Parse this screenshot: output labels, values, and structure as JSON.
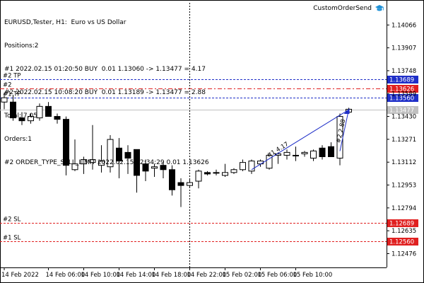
{
  "window": {
    "title": "EURUSD,Tester, H1:  Euro vs US Dollar"
  },
  "info": {
    "positions": "Positions:2",
    "pos1": "#1 2022.02.15 01:20:50 BUY  0.01 1.13060 -> 1.13477 = 4.17",
    "pos2": "#2 2022.02.15 10:08:20 BUY  0.01 1.13189 -> 1.13477 = 2.88",
    "total": "Total: 7.05",
    "orders": "Orders:1",
    "order1": "#2 ORDER_TYPE_SELL_LIMIT 2022.02.15 02:34:29 0.01 1.13626"
  },
  "expert": {
    "name": "CustomOrderSend",
    "icon": "graduation-cap-icon",
    "icon_color": "#1e90d6"
  },
  "levels": [
    {
      "label": "#2 TP",
      "price": 1.13689,
      "price_label": "1.13689",
      "color": "#1f2fc8",
      "badge": "#1f2fc8"
    },
    {
      "label": "#2",
      "price": 1.13626,
      "price_label": "1.13626",
      "color": "#e02020",
      "badge": "#e02020"
    },
    {
      "label": "#1 TP",
      "price": 1.1356,
      "price_label": "1.13560",
      "color": "#1f2fc8",
      "badge": "#1f2fc8"
    },
    {
      "label": "",
      "price": 1.13477,
      "price_label": "1.13477",
      "color": "#c0c0c0",
      "badge": "#c0c0c0"
    },
    {
      "label": "#2 SL",
      "price": 1.12689,
      "price_label": "1.12689",
      "color": "#e02020",
      "badge": "#e02020"
    },
    {
      "label": "#1 SL",
      "price": 1.1256,
      "price_label": "1.12560",
      "color": "#e02020",
      "badge": "#e02020"
    }
  ],
  "trade_labels": [
    {
      "text": "#1 4.17",
      "open_index": 28,
      "open_price": 1.1306
    },
    {
      "text": "#2 2.88",
      "open_index": 38,
      "open_price": 1.13189
    }
  ],
  "chart_data": {
    "type": "candlestick",
    "title": "",
    "ylim": [
      1.1238,
      1.1422
    ],
    "y_ticks": [
      "1.14066",
      "1.13907",
      "1.13748",
      "1.13589",
      "1.13430",
      "1.13271",
      "1.13112",
      "1.12953",
      "1.12794",
      "1.12635",
      "1.12476"
    ],
    "x_ticks": [
      {
        "label": "14 Feb 2022",
        "index": 0
      },
      {
        "label": "14 Feb 06:00",
        "index": 5
      },
      {
        "label": "14 Feb 10:00",
        "index": 9
      },
      {
        "label": "14 Feb 14:00",
        "index": 13
      },
      {
        "label": "14 Feb 18:00",
        "index": 17
      },
      {
        "label": "14 Feb 22:00",
        "index": 21
      },
      {
        "label": "15 Feb 02:00",
        "index": 25
      },
      {
        "label": "15 Feb 06:00",
        "index": 29
      },
      {
        "label": "15 Feb 10:00",
        "index": 33
      }
    ],
    "cursor_index": 21,
    "grid": false,
    "candles": [
      {
        "o": 1.1353,
        "h": 1.1359,
        "l": 1.1348,
        "c": 1.1356
      },
      {
        "o": 1.1353,
        "h": 1.1358,
        "l": 1.134,
        "c": 1.1342
      },
      {
        "o": 1.1342,
        "h": 1.1346,
        "l": 1.1337,
        "c": 1.134
      },
      {
        "o": 1.134,
        "h": 1.1345,
        "l": 1.1338,
        "c": 1.1343
      },
      {
        "o": 1.1342,
        "h": 1.1352,
        "l": 1.134,
        "c": 1.135
      },
      {
        "o": 1.135,
        "h": 1.1353,
        "l": 1.1343,
        "c": 1.1343
      },
      {
        "o": 1.1343,
        "h": 1.1345,
        "l": 1.1338,
        "c": 1.1341
      },
      {
        "o": 1.1341,
        "h": 1.1343,
        "l": 1.1302,
        "c": 1.1309
      },
      {
        "o": 1.1306,
        "h": 1.1327,
        "l": 1.1305,
        "c": 1.131
      },
      {
        "o": 1.131,
        "h": 1.1315,
        "l": 1.1303,
        "c": 1.1313
      },
      {
        "o": 1.1311,
        "h": 1.1337,
        "l": 1.1306,
        "c": 1.1313
      },
      {
        "o": 1.1309,
        "h": 1.1323,
        "l": 1.1304,
        "c": 1.1312
      },
      {
        "o": 1.1308,
        "h": 1.133,
        "l": 1.1304,
        "c": 1.1327
      },
      {
        "o": 1.1321,
        "h": 1.1328,
        "l": 1.13,
        "c": 1.1312
      },
      {
        "o": 1.1318,
        "h": 1.1323,
        "l": 1.1303,
        "c": 1.1314
      },
      {
        "o": 1.132,
        "h": 1.132,
        "l": 1.129,
        "c": 1.1302
      },
      {
        "o": 1.131,
        "h": 1.1313,
        "l": 1.1298,
        "c": 1.1305
      },
      {
        "o": 1.1307,
        "h": 1.131,
        "l": 1.1301,
        "c": 1.1308
      },
      {
        "o": 1.1309,
        "h": 1.1311,
        "l": 1.13,
        "c": 1.1306
      },
      {
        "o": 1.1306,
        "h": 1.1309,
        "l": 1.1288,
        "c": 1.1292
      },
      {
        "o": 1.1297,
        "h": 1.13,
        "l": 1.128,
        "c": 1.1295
      },
      {
        "o": 1.1295,
        "h": 1.1299,
        "l": 1.1294,
        "c": 1.1297
      },
      {
        "o": 1.1298,
        "h": 1.1306,
        "l": 1.1293,
        "c": 1.1305
      },
      {
        "o": 1.1304,
        "h": 1.1305,
        "l": 1.1302,
        "c": 1.1303
      },
      {
        "o": 1.1304,
        "h": 1.1306,
        "l": 1.1302,
        "c": 1.1304
      },
      {
        "o": 1.1302,
        "h": 1.131,
        "l": 1.1301,
        "c": 1.1304
      },
      {
        "o": 1.1304,
        "h": 1.1307,
        "l": 1.1303,
        "c": 1.1306
      },
      {
        "o": 1.1306,
        "h": 1.1313,
        "l": 1.1305,
        "c": 1.1311
      },
      {
        "o": 1.1305,
        "h": 1.1313,
        "l": 1.1303,
        "c": 1.1312
      },
      {
        "o": 1.131,
        "h": 1.1313,
        "l": 1.1308,
        "c": 1.1312
      },
      {
        "o": 1.1307,
        "h": 1.1316,
        "l": 1.1306,
        "c": 1.1316
      },
      {
        "o": 1.1316,
        "h": 1.1318,
        "l": 1.131,
        "c": 1.1317
      },
      {
        "o": 1.1316,
        "h": 1.132,
        "l": 1.1313,
        "c": 1.1318
      },
      {
        "o": 1.1316,
        "h": 1.1322,
        "l": 1.1312,
        "c": 1.1316
      },
      {
        "o": 1.1317,
        "h": 1.1319,
        "l": 1.1315,
        "c": 1.1318
      },
      {
        "o": 1.1314,
        "h": 1.132,
        "l": 1.1312,
        "c": 1.1319
      },
      {
        "o": 1.1321,
        "h": 1.1323,
        "l": 1.1313,
        "c": 1.1315
      },
      {
        "o": 1.1322,
        "h": 1.1325,
        "l": 1.1315,
        "c": 1.1315
      },
      {
        "o": 1.1314,
        "h": 1.1345,
        "l": 1.1309,
        "c": 1.1343
      },
      {
        "o": 1.1346,
        "h": 1.1349,
        "l": 1.1346,
        "c": 1.1348
      }
    ]
  }
}
